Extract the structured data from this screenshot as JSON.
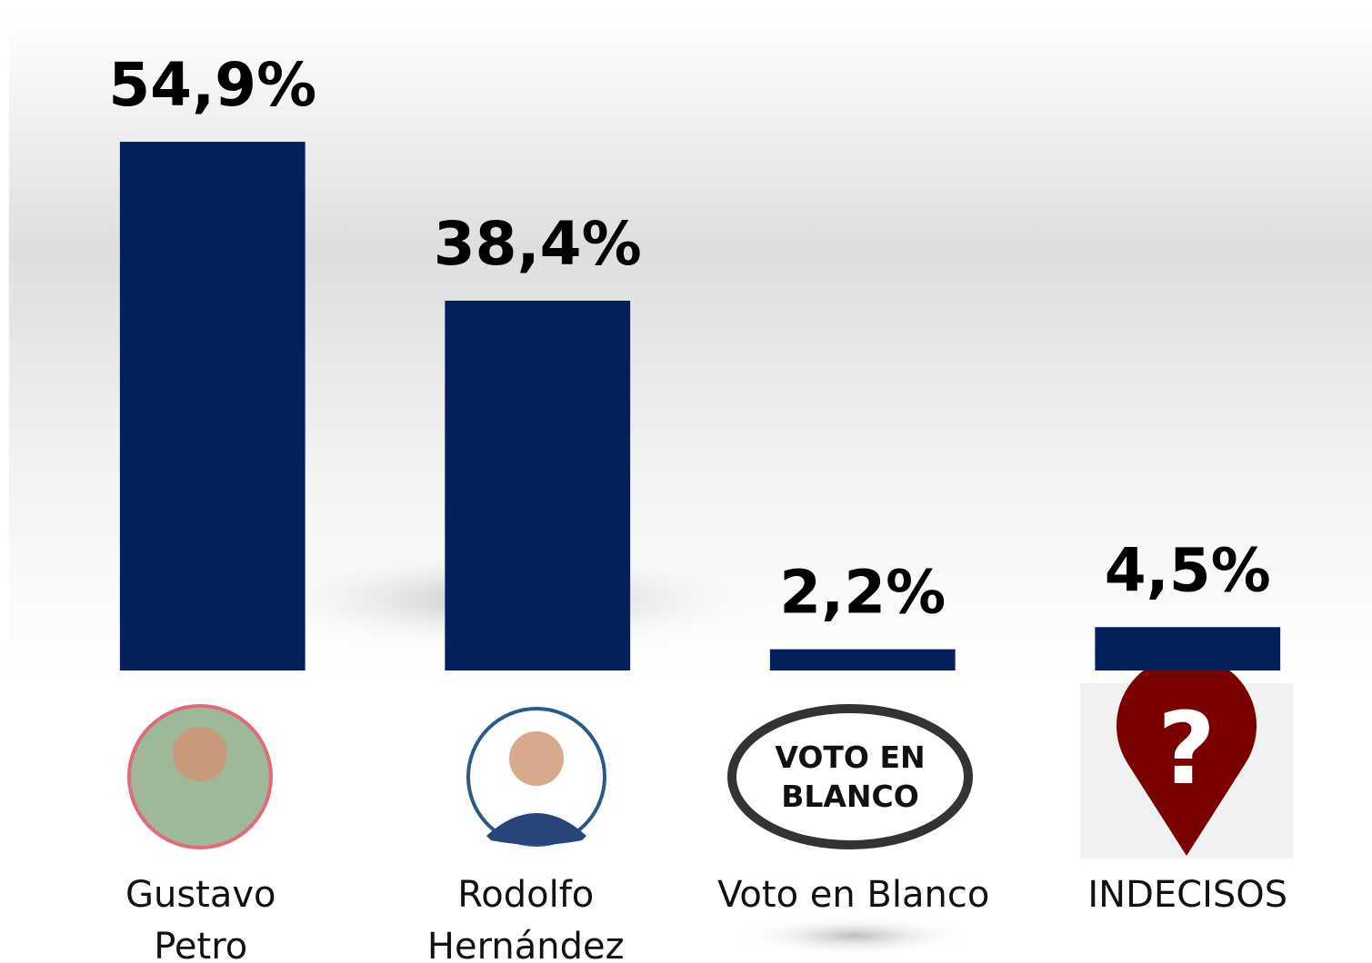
{
  "chart_data": {
    "type": "bar",
    "categories": [
      [
        "Gustavo",
        "Petro"
      ],
      [
        "Rodolfo",
        "Hernández"
      ],
      [
        "Voto en Blanco"
      ],
      [
        "INDECISOS"
      ]
    ],
    "values": [
      54.9,
      38.4,
      2.2,
      4.5
    ],
    "value_labels": [
      "54,9%",
      "38,4%",
      "2,2%",
      "4,5%"
    ],
    "color": "#031f5c",
    "ylim": [
      0,
      60
    ],
    "badge_lines": [
      "VOTO EN",
      "BLANCO"
    ],
    "pin_mark": "?"
  }
}
